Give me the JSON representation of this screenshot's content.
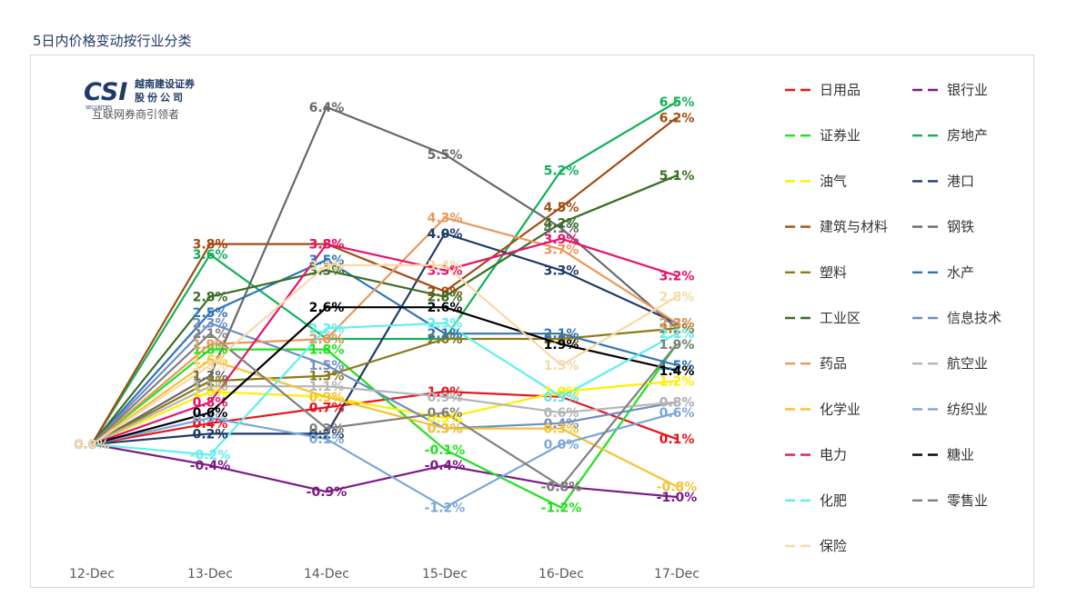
{
  "page_title": "5日内价格变动按行业分类",
  "logo": {
    "mark": "CSI",
    "subtext": "SECURITIES",
    "name_line1": "越南建设证券",
    "name_line2": "股份公司",
    "tagline": "互联网券商引领者",
    "brand_color": "#1f3a68"
  },
  "chart_data": {
    "type": "line",
    "title": "",
    "xlabel": "",
    "ylabel": "",
    "categories": [
      "12-Dec",
      "13-Dec",
      "14-Dec",
      "15-Dec",
      "16-Dec",
      "17-Dec"
    ],
    "ylim": [
      -2,
      7
    ],
    "grid": false,
    "legend_position": "right",
    "series": [
      {
        "name": "日用品",
        "color": "#e8141c",
        "values": [
          0,
          0.4,
          0.7,
          1.0,
          0.9,
          0.1
        ],
        "labels": [
          "0.0%",
          "0.4%",
          "0.7%",
          "1.0%",
          "0.9%",
          "0.1%"
        ]
      },
      {
        "name": "银行业",
        "color": "#7b1a86",
        "values": [
          0,
          -0.4,
          -0.9,
          -0.4,
          -0.8,
          -1.0
        ],
        "labels": [
          "0.0%",
          "-0.4%",
          "-0.9%",
          "-0.4%",
          "-0.8%",
          "-1.0%"
        ]
      },
      {
        "name": "证券业",
        "color": "#1fe21f",
        "values": [
          0,
          1.8,
          1.8,
          -0.1,
          -1.2,
          1.9
        ],
        "labels": [
          "0.0%",
          "1.8%",
          "1.8%",
          "-0.1%",
          "-1.2%",
          "1.9%"
        ]
      },
      {
        "name": "房地产",
        "color": "#12b05a",
        "values": [
          0,
          3.6,
          2.0,
          2.0,
          5.2,
          6.5
        ],
        "labels": [
          "0.0%",
          "3.6%",
          "2.0%",
          "2.0%",
          "5.2%",
          "6.5%"
        ]
      },
      {
        "name": "油气",
        "color": "#ffee00",
        "values": [
          0,
          1.0,
          0.9,
          0.5,
          1.0,
          1.2
        ],
        "labels": [
          "0.0%",
          "1.0%",
          "0.9%",
          "0.5%",
          "1.0%",
          "1.2%"
        ]
      },
      {
        "name": "港口",
        "color": "#1f3a68",
        "values": [
          0,
          0.2,
          0.2,
          4.0,
          3.3,
          2.3
        ],
        "labels": [
          "0.0%",
          "0.2%",
          "0.2%",
          "4.0%",
          "3.3%",
          "2.3%"
        ]
      },
      {
        "name": "建筑与材料",
        "color": "#a24d12",
        "values": [
          0,
          3.8,
          3.8,
          2.9,
          4.5,
          6.2
        ],
        "labels": [
          "0.0%",
          "3.8%",
          "3.8%",
          "2.9%",
          "4.5%",
          "6.2%"
        ]
      },
      {
        "name": "钢铁",
        "color": "#696969",
        "values": [
          0,
          1.3,
          6.4,
          5.5,
          4.1,
          2.2
        ],
        "labels": [
          "0.0%",
          "1.3%",
          "6.4%",
          "5.5%",
          "4.1%",
          "2.2%"
        ]
      },
      {
        "name": "塑料",
        "color": "#8c7a1a",
        "values": [
          0,
          1.2,
          1.3,
          2.0,
          2.0,
          2.2
        ],
        "labels": [
          "0.0%",
          "1.2%",
          "1.3%",
          "2.0%",
          "2.0%",
          "2.2%"
        ]
      },
      {
        "name": "水产",
        "color": "#2e75b6",
        "values": [
          0,
          2.5,
          3.5,
          2.1,
          2.1,
          1.5
        ],
        "labels": [
          "0.0%",
          "2.5%",
          "3.5%",
          "2.1%",
          "2.1%",
          "1.5%"
        ]
      },
      {
        "name": "工业区",
        "color": "#3b6e22",
        "values": [
          0,
          2.8,
          3.3,
          2.8,
          4.2,
          5.1
        ],
        "labels": [
          "0.0%",
          "2.8%",
          "3.3%",
          "2.8%",
          "4.2%",
          "5.1%"
        ]
      },
      {
        "name": "信息技术",
        "color": "#6d8ec8",
        "values": [
          0,
          2.3,
          1.5,
          0.3,
          0.4,
          0.8
        ],
        "labels": [
          "0.0%",
          "2.3%",
          "1.5%",
          "0.3%",
          "0.4%",
          "0.8%"
        ]
      },
      {
        "name": "药品",
        "color": "#e9975a",
        "values": [
          0,
          1.9,
          2.0,
          4.3,
          3.7,
          2.3
        ],
        "labels": [
          "0.0%",
          "1.9%",
          "2.0%",
          "4.3%",
          "3.7%",
          "2.3%"
        ]
      },
      {
        "name": "航空业",
        "color": "#b5b5b5",
        "values": [
          0,
          1.1,
          1.1,
          0.9,
          0.6,
          0.8
        ],
        "labels": [
          "0.0%",
          "1.1%",
          "1.1%",
          "0.9%",
          "0.6%",
          "0.8%"
        ]
      },
      {
        "name": "化学业",
        "color": "#f5c232",
        "values": [
          0,
          1.6,
          0.9,
          0.3,
          0.3,
          -0.8
        ],
        "labels": [
          "0.0%",
          "1.6%",
          "0.9%",
          "0.3%",
          "0.3%",
          "-0.8%"
        ]
      },
      {
        "name": "纺织业",
        "color": "#7aa8d8",
        "values": [
          0,
          0.5,
          0.1,
          -1.2,
          0.0,
          0.6
        ],
        "labels": [
          "0.0%",
          "0.5%",
          "0.1%",
          "-1.2%",
          "0.0%",
          "0.6%"
        ]
      },
      {
        "name": "电力",
        "color": "#e8126e",
        "values": [
          0,
          0.8,
          3.8,
          3.3,
          3.9,
          3.2
        ],
        "labels": [
          "0.0%",
          "0.8%",
          "3.8%",
          "3.3%",
          "3.9%",
          "3.2%"
        ]
      },
      {
        "name": "糖业",
        "color": "#000000",
        "values": [
          0,
          0.6,
          2.6,
          2.6,
          1.9,
          1.4
        ],
        "labels": [
          "0.0%",
          "0.6%",
          "2.6%",
          "2.6%",
          "1.9%",
          "1.4%"
        ]
      },
      {
        "name": "化肥",
        "color": "#5ef0f0",
        "values": [
          0,
          -0.2,
          2.2,
          2.3,
          0.9,
          2.1
        ],
        "labels": [
          "0.0%",
          "-0.2%",
          "2.2%",
          "2.3%",
          "0.9%",
          "2.1%"
        ]
      },
      {
        "name": "零售业",
        "color": "#808080",
        "values": [
          0,
          2.1,
          0.3,
          0.6,
          -0.8,
          1.9
        ],
        "labels": [
          "0.0%",
          "2.1%",
          "0.3%",
          "0.6%",
          "-0.8%",
          "1.9%"
        ]
      },
      {
        "name": "保险",
        "color": "#f7d9a8",
        "values": [
          0,
          1.5,
          3.4,
          3.4,
          1.5,
          2.8
        ],
        "labels": [
          "0.0%",
          "1.5%",
          "3.4%",
          "3.4%",
          "1.5%",
          "2.8%"
        ]
      }
    ]
  }
}
